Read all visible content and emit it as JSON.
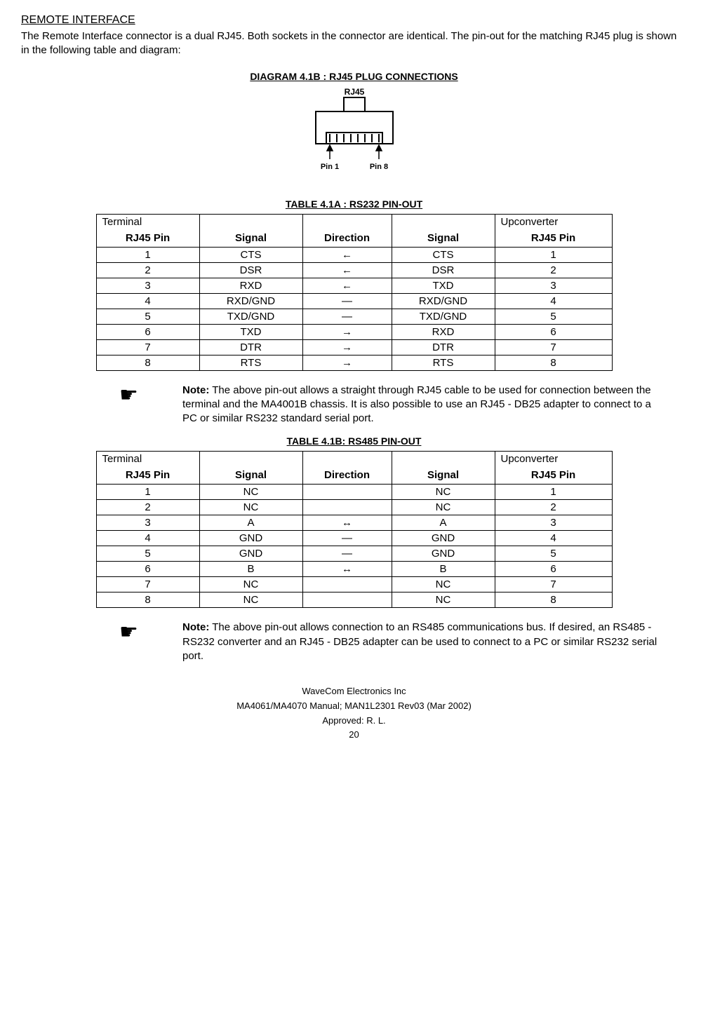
{
  "section_title": "REMOTE INTERFACE",
  "intro": "The Remote Interface connector is a dual RJ45. Both sockets in the connector are identical. The pin-out for the matching RJ45 plug is shown in the following table and diagram:",
  "diagram": {
    "title": "DIAGRAM 4.1B : RJ45 PLUG CONNECTIONS",
    "label_top": "RJ45",
    "label_pin1": "Pin 1",
    "label_pin8": "Pin 8",
    "colors": {
      "stroke": "#000000",
      "bg": "#ffffff"
    }
  },
  "tableA": {
    "title": "TABLE 4.1A : RS232 PIN-OUT",
    "header_top": {
      "terminal": "Terminal",
      "upconverter": "Upconverter"
    },
    "header": {
      "pin": "RJ45 Pin",
      "signal": "Signal",
      "direction": "Direction",
      "signal2": "Signal",
      "up_pin": "RJ45 Pin"
    },
    "rows": [
      {
        "pin": "1",
        "signal": "CTS",
        "dir": "←",
        "signal2": "CTS",
        "up": "1"
      },
      {
        "pin": "2",
        "signal": "DSR",
        "dir": "←",
        "signal2": "DSR",
        "up": "2"
      },
      {
        "pin": "3",
        "signal": "RXD",
        "dir": "←",
        "signal2": "TXD",
        "up": "3"
      },
      {
        "pin": "4",
        "signal": "RXD/GND",
        "dir": "—",
        "signal2": "RXD/GND",
        "up": "4"
      },
      {
        "pin": "5",
        "signal": "TXD/GND",
        "dir": "—",
        "signal2": "TXD/GND",
        "up": "5"
      },
      {
        "pin": "6",
        "signal": "TXD",
        "dir": "→",
        "signal2": "RXD",
        "up": "6"
      },
      {
        "pin": "7",
        "signal": "DTR",
        "dir": "→",
        "signal2": "DTR",
        "up": "7"
      },
      {
        "pin": "8",
        "signal": "RTS",
        "dir": "→",
        "signal2": "RTS",
        "up": "8"
      }
    ]
  },
  "noteA": {
    "label": "Note:",
    "text": " The above pin-out allows a straight through RJ45 cable to be used for connection between the terminal and the MA4001B chassis. It is also possible to use an RJ45 - DB25 adapter to connect to a PC or similar RS232 standard serial port."
  },
  "tableB": {
    "title": "TABLE 4.1B: RS485 PIN-OUT",
    "header_top": {
      "terminal": "Terminal",
      "upconverter": "Upconverter"
    },
    "header": {
      "pin": "RJ45 Pin",
      "signal": "Signal",
      "direction": "Direction",
      "signal2": "Signal",
      "up_pin": "RJ45 Pin"
    },
    "rows": [
      {
        "pin": "1",
        "signal": "NC",
        "dir": "",
        "signal2": "NC",
        "up": "1"
      },
      {
        "pin": "2",
        "signal": "NC",
        "dir": "",
        "signal2": "NC",
        "up": "2"
      },
      {
        "pin": "3",
        "signal": "A",
        "dir": "↔",
        "signal2": "A",
        "up": "3"
      },
      {
        "pin": "4",
        "signal": "GND",
        "dir": "—",
        "signal2": "GND",
        "up": "4"
      },
      {
        "pin": "5",
        "signal": "GND",
        "dir": "—",
        "signal2": "GND",
        "up": "5"
      },
      {
        "pin": "6",
        "signal": "B",
        "dir": "↔",
        "signal2": "B",
        "up": "6"
      },
      {
        "pin": "7",
        "signal": "NC",
        "dir": "",
        "signal2": "NC",
        "up": "7"
      },
      {
        "pin": "8",
        "signal": "NC",
        "dir": "",
        "signal2": "NC",
        "up": "8"
      }
    ]
  },
  "noteB": {
    "label": "Note:",
    "text": " The above pin-out allows connection to an RS485 communications bus. If desired, an RS485 - RS232 converter and an RJ45 - DB25 adapter can be used to connect to a PC or similar RS232 serial port."
  },
  "footer": {
    "line1": "WaveCom Electronics Inc",
    "line2": "MA4061/MA4070 Manual; MAN1L2301 Rev03 (Mar 2002)",
    "line3": "Approved: R. L.",
    "page": "20"
  }
}
